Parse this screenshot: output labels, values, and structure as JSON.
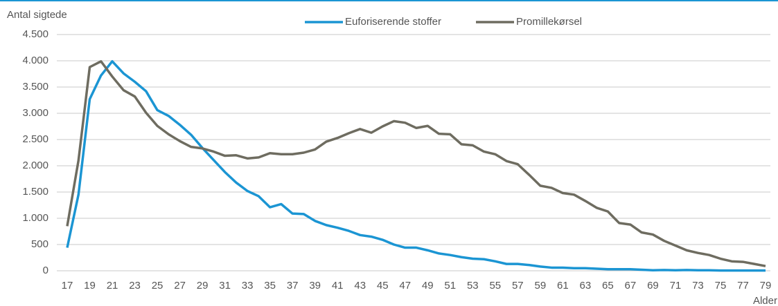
{
  "chart_data": {
    "type": "line",
    "ylabel": "Antal sigtede",
    "xlabel": "Alder",
    "x": [
      17,
      18,
      19,
      20,
      21,
      22,
      23,
      24,
      25,
      26,
      27,
      28,
      29,
      30,
      31,
      32,
      33,
      34,
      35,
      36,
      37,
      38,
      39,
      40,
      41,
      42,
      43,
      44,
      45,
      46,
      47,
      48,
      49,
      50,
      51,
      52,
      53,
      54,
      55,
      56,
      57,
      58,
      59,
      60,
      61,
      62,
      63,
      64,
      65,
      66,
      67,
      68,
      69,
      70,
      71,
      72,
      73,
      74,
      75,
      76,
      77,
      78,
      79
    ],
    "series": [
      {
        "name": "Euforiserende stoffer",
        "color": "#1b95d3",
        "values": [
          440,
          1450,
          3270,
          3720,
          3990,
          3760,
          3600,
          3420,
          3060,
          2950,
          2780,
          2590,
          2340,
          2110,
          1880,
          1680,
          1520,
          1420,
          1210,
          1270,
          1090,
          1080,
          950,
          870,
          820,
          760,
          680,
          650,
          590,
          500,
          440,
          440,
          390,
          330,
          300,
          260,
          230,
          220,
          180,
          130,
          130,
          110,
          80,
          60,
          60,
          50,
          50,
          40,
          30,
          30,
          30,
          20,
          10,
          15,
          10,
          15,
          10,
          10,
          5,
          5,
          5,
          5,
          5
        ]
      },
      {
        "name": "Promillekørsel",
        "color": "#6e6c60",
        "values": [
          850,
          2100,
          3880,
          3990,
          3700,
          3440,
          3320,
          3010,
          2760,
          2600,
          2470,
          2360,
          2330,
          2270,
          2190,
          2200,
          2140,
          2160,
          2240,
          2220,
          2220,
          2250,
          2310,
          2460,
          2530,
          2620,
          2700,
          2630,
          2750,
          2850,
          2820,
          2720,
          2760,
          2610,
          2600,
          2410,
          2390,
          2270,
          2220,
          2090,
          2030,
          1830,
          1620,
          1580,
          1480,
          1450,
          1330,
          1200,
          1130,
          910,
          880,
          730,
          690,
          570,
          480,
          390,
          340,
          300,
          230,
          180,
          170,
          130,
          90
        ]
      }
    ],
    "xlim": [
      17,
      79
    ],
    "xticks": [
      17,
      19,
      21,
      23,
      25,
      27,
      29,
      31,
      33,
      35,
      37,
      39,
      41,
      43,
      45,
      47,
      49,
      51,
      53,
      55,
      57,
      59,
      61,
      63,
      65,
      67,
      69,
      71,
      73,
      75,
      77,
      79
    ],
    "ylim": [
      0,
      4500
    ],
    "yticks": [
      0,
      500,
      {
        "value": 1000,
        "label": "1.000"
      },
      {
        "value": 1500,
        "label": "1.500"
      },
      {
        "value": 2000,
        "label": "2.000"
      },
      {
        "value": 2500,
        "label": "2.500"
      },
      {
        "value": 3000,
        "label": "3.000"
      },
      {
        "value": 3500,
        "label": "3.500"
      },
      {
        "value": 4000,
        "label": "4.000"
      },
      {
        "value": 4500,
        "label": "4.500"
      }
    ],
    "grid": true,
    "legend": "top"
  }
}
